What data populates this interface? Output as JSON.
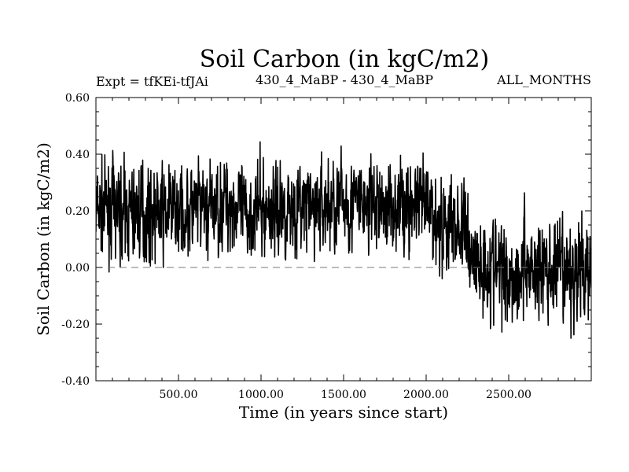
{
  "chart_data": {
    "type": "line",
    "title": "Soil Carbon (in kgC/m2)",
    "subtitle_left": "Expt = tfKEi-tfJAi",
    "subtitle_center": "430_4_MaBP - 430_4_MaBP",
    "subtitle_right": "ALL_MONTHS",
    "xlabel": "Time (in years since start)",
    "ylabel": "Soil Carbon (in kgC/m2)",
    "xlim": [
      0,
      3000
    ],
    "ylim": [
      -0.4,
      0.6
    ],
    "xticks": [
      500,
      1000,
      1500,
      2000,
      2500
    ],
    "xtick_labels": [
      "500.00",
      "1000.00",
      "1500.00",
      "2000.00",
      "2500.00"
    ],
    "yticks": [
      -0.4,
      -0.2,
      0.0,
      0.2,
      0.4,
      0.6
    ],
    "ytick_labels": [
      "-0.40",
      "-0.20",
      "0.00",
      "0.20",
      "0.40",
      "0.60"
    ],
    "reference_line_y": 0.0,
    "series": [
      {
        "color": "#000000",
        "x": [
          0,
          100,
          200,
          300,
          400,
          500,
          600,
          700,
          800,
          850,
          900,
          950,
          1000,
          1100,
          1200,
          1300,
          1400,
          1500,
          1600,
          1700,
          1800,
          1900,
          2000,
          2050,
          2100,
          2150,
          2200,
          2250,
          2300,
          2400,
          2500,
          2550,
          2600,
          2650,
          2700,
          2800,
          2850,
          2900,
          3000
        ],
        "y": [
          0.2,
          0.2,
          0.19,
          0.2,
          0.19,
          0.2,
          0.2,
          0.2,
          0.24,
          0.21,
          0.18,
          0.21,
          0.2,
          0.21,
          0.21,
          0.21,
          0.22,
          0.23,
          0.22,
          0.21,
          0.22,
          0.22,
          0.21,
          0.18,
          0.15,
          0.15,
          0.14,
          0.1,
          0.02,
          0.0,
          -0.02,
          -0.03,
          0.02,
          0.0,
          -0.01,
          -0.02,
          -0.04,
          -0.02,
          0.01
        ]
      }
    ]
  }
}
